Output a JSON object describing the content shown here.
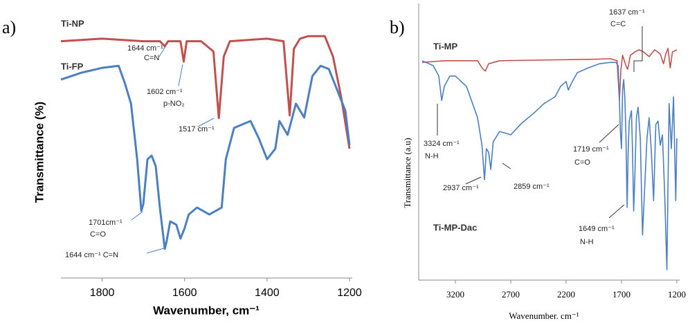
{
  "chart_data": [
    {
      "type": "line",
      "panel_label": "a)",
      "xlabel": "Wavenumber, cm⁻¹",
      "ylabel": "Transmittance (%)",
      "xlim": [
        1900,
        1200
      ],
      "ylim": [
        0,
        100
      ],
      "xticks": [
        1800,
        1600,
        1400,
        1200
      ],
      "series": [
        {
          "name": "Ti-NP",
          "color": "#c0504d",
          "x": [
            1900,
            1800,
            1700,
            1660,
            1648,
            1640,
            1610,
            1602,
            1595,
            1560,
            1530,
            1517,
            1505,
            1490,
            1400,
            1360,
            1345,
            1335,
            1320,
            1300,
            1260,
            1240,
            1220,
            1200
          ],
          "values": [
            92,
            93,
            92,
            92,
            90,
            92,
            92,
            84,
            92,
            92,
            88,
            62,
            86,
            92,
            93,
            92,
            63,
            89,
            93,
            94,
            94,
            86,
            70,
            50
          ]
        },
        {
          "name": "Ti-FP",
          "color": "#4a7fc1",
          "x": [
            1900,
            1850,
            1800,
            1760,
            1745,
            1730,
            1715,
            1705,
            1700,
            1690,
            1680,
            1670,
            1660,
            1648,
            1644,
            1635,
            1620,
            1610,
            1600,
            1590,
            1570,
            1540,
            1510,
            1500,
            1480,
            1460,
            1440,
            1420,
            1400,
            1380,
            1370,
            1360,
            1350,
            1330,
            1310,
            1290,
            1270,
            1250,
            1230,
            1210,
            1200
          ],
          "values": [
            77,
            79.7,
            81.6,
            82.4,
            75.7,
            67.6,
            45.9,
            25.7,
            28.4,
            45.9,
            47.3,
            43.2,
            27,
            10.8,
            13.5,
            21.6,
            20.3,
            14.9,
            18.9,
            24.3,
            27,
            24.3,
            27,
            45.9,
            58.1,
            59.5,
            60.8,
            54.1,
            45.9,
            50,
            60.8,
            58.1,
            55.4,
            67.6,
            62.2,
            78.4,
            82.4,
            81.1,
            73,
            64.9,
            51.4
          ]
        }
      ],
      "annotations": [
        "1644 cm⁻¹",
        "C=N",
        "1602 cm⁻¹",
        "p-NO₂",
        "1517 cm⁻¹",
        "1701cm⁻¹",
        "C=O",
        "1644 cm⁻¹ C=N"
      ]
    },
    {
      "type": "line",
      "panel_label": "b)",
      "xlabel": "Wavenumber. cm⁻¹",
      "ylabel": "Transmittance (a.u)",
      "xlim": [
        3500,
        1200
      ],
      "ylim": [
        0,
        100
      ],
      "xticks": [
        3200,
        2700,
        2200,
        1700,
        1200
      ],
      "series": [
        {
          "name": "Ti-MP",
          "color": "#c0504d",
          "x": [
            3500,
            3300,
            3000,
            2960,
            2930,
            2900,
            2800,
            2500,
            2000,
            1800,
            1740,
            1719,
            1705,
            1690,
            1660,
            1645,
            1637,
            1620,
            1580,
            1540,
            1500,
            1450,
            1400,
            1350,
            1320,
            1300,
            1280,
            1260,
            1240,
            1200
          ],
          "values": [
            79.7,
            80.3,
            80.3,
            77.7,
            76.5,
            79.2,
            80.3,
            80.5,
            80.8,
            81,
            80.3,
            65.8,
            77.2,
            82.3,
            78.5,
            77.2,
            78.5,
            82.3,
            83.5,
            84.3,
            83.5,
            81.8,
            84.3,
            82.8,
            79.2,
            82.8,
            84.8,
            77.7,
            83.5,
            84.3
          ]
        },
        {
          "name": "Ti-MP-Dac",
          "color": "#4a7fc1",
          "x": [
            3500,
            3400,
            3350,
            3324,
            3300,
            3250,
            3200,
            3100,
            3000,
            2960,
            2937,
            2920,
            2900,
            2880,
            2859,
            2800,
            2700,
            2600,
            2500,
            2400,
            2300,
            2250,
            2200,
            2180,
            2150,
            2100,
            2000,
            1900,
            1800,
            1750,
            1730,
            1719,
            1710,
            1700,
            1690,
            1680,
            1670,
            1660,
            1649,
            1640,
            1630,
            1610,
            1600,
            1590,
            1580,
            1565,
            1550,
            1530,
            1510,
            1490,
            1470,
            1450,
            1430,
            1410,
            1390,
            1370,
            1350,
            1330,
            1310,
            1290,
            1270,
            1250,
            1230,
            1210,
            1200
          ],
          "values": [
            80.3,
            78.5,
            74.7,
            65.8,
            70.9,
            74.7,
            74.7,
            70.9,
            59.5,
            49.4,
            36.7,
            48.1,
            46.8,
            40.5,
            50.6,
            54.4,
            53.2,
            57.5,
            60.8,
            64.6,
            67.1,
            70.9,
            72.7,
            69.6,
            72.2,
            75.9,
            77.7,
            79.2,
            79.7,
            79.7,
            78.5,
            65.8,
            54.4,
            48.1,
            69.6,
            73.4,
            67.1,
            53.2,
            26.6,
            46.8,
            58.2,
            62,
            46.8,
            25.3,
            36.7,
            59.5,
            63.3,
            51.9,
            16.5,
            34.2,
            51.9,
            59.5,
            46.8,
            29.1,
            57,
            58.2,
            49.4,
            53.2,
            31.6,
            3.8,
            64.6,
            48.1,
            67.1,
            29.1,
            51.9
          ]
        }
      ],
      "annotations": [
        "1637 cm⁻¹",
        "C=C",
        "3324 cm⁻¹",
        "N-H",
        "2937 cm⁻¹",
        "2859 cm⁻¹",
        "1719 cm⁻¹",
        "C=O",
        "1649 cm⁻¹",
        "N-H"
      ]
    }
  ]
}
